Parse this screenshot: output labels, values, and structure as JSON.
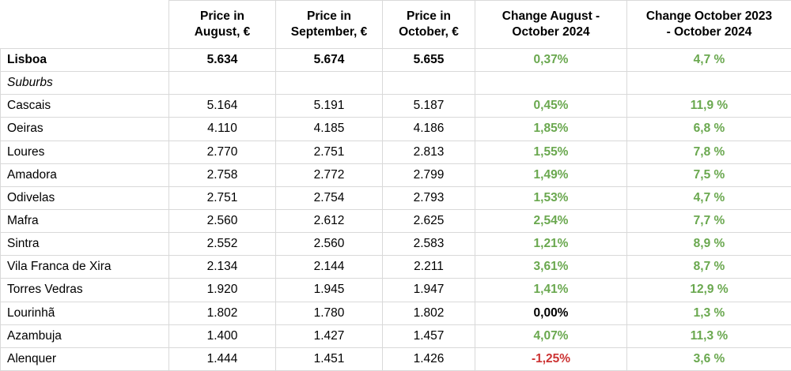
{
  "colors": {
    "positive": "#6aa84f",
    "negative": "#cc3333",
    "neutral": "#000000",
    "gridline": "#d9d9d9"
  },
  "chart_data": {
    "type": "table",
    "columns": [
      {
        "label": ""
      },
      {
        "label": "Price in\nAugust, €"
      },
      {
        "label": "Price in\nSeptember, €"
      },
      {
        "label": "Price in\nOctober, €"
      },
      {
        "label": "Change August -\nOctober 2024"
      },
      {
        "label": "Change October 2023\n- October 2024"
      }
    ],
    "rows": [
      {
        "name": "Lisboa",
        "name_style": "bold",
        "values_bold": true,
        "aug": "5.634",
        "sep": "5.674",
        "oct": "5.655",
        "chg_aug_oct": "0,37%",
        "chg_aug_oct_color": "positive",
        "chg_yoy": "4,7 %",
        "chg_yoy_color": "positive"
      },
      {
        "name": "Suburbs",
        "name_style": "italic",
        "values_bold": false,
        "aug": "",
        "sep": "",
        "oct": "",
        "chg_aug_oct": "",
        "chg_aug_oct_color": "",
        "chg_yoy": "",
        "chg_yoy_color": ""
      },
      {
        "name": "Cascais",
        "name_style": "normal",
        "values_bold": false,
        "aug": "5.164",
        "sep": "5.191",
        "oct": "5.187",
        "chg_aug_oct": "0,45%",
        "chg_aug_oct_color": "positive",
        "chg_yoy": "11,9 %",
        "chg_yoy_color": "positive"
      },
      {
        "name": "Oeiras",
        "name_style": "normal",
        "values_bold": false,
        "aug": "4.110",
        "sep": "4.185",
        "oct": "4.186",
        "chg_aug_oct": "1,85%",
        "chg_aug_oct_color": "positive",
        "chg_yoy": "6,8 %",
        "chg_yoy_color": "positive"
      },
      {
        "name": "Loures",
        "name_style": "normal",
        "values_bold": false,
        "aug": "2.770",
        "sep": "2.751",
        "oct": "2.813",
        "chg_aug_oct": "1,55%",
        "chg_aug_oct_color": "positive",
        "chg_yoy": "7,8 %",
        "chg_yoy_color": "positive"
      },
      {
        "name": "Amadora",
        "name_style": "normal",
        "values_bold": false,
        "aug": "2.758",
        "sep": "2.772",
        "oct": "2.799",
        "chg_aug_oct": "1,49%",
        "chg_aug_oct_color": "positive",
        "chg_yoy": "7,5 %",
        "chg_yoy_color": "positive"
      },
      {
        "name": "Odivelas",
        "name_style": "normal",
        "values_bold": false,
        "aug": "2.751",
        "sep": "2.754",
        "oct": "2.793",
        "chg_aug_oct": "1,53%",
        "chg_aug_oct_color": "positive",
        "chg_yoy": "4,7 %",
        "chg_yoy_color": "positive"
      },
      {
        "name": "Mafra",
        "name_style": "normal",
        "values_bold": false,
        "aug": "2.560",
        "sep": "2.612",
        "oct": "2.625",
        "chg_aug_oct": "2,54%",
        "chg_aug_oct_color": "positive",
        "chg_yoy": "7,7 %",
        "chg_yoy_color": "positive"
      },
      {
        "name": "Sintra",
        "name_style": "normal",
        "values_bold": false,
        "aug": "2.552",
        "sep": "2.560",
        "oct": "2.583",
        "chg_aug_oct": "1,21%",
        "chg_aug_oct_color": "positive",
        "chg_yoy": "8,9 %",
        "chg_yoy_color": "positive"
      },
      {
        "name": "Vila Franca de Xira",
        "name_style": "normal",
        "values_bold": false,
        "aug": "2.134",
        "sep": "2.144",
        "oct": "2.211",
        "chg_aug_oct": "3,61%",
        "chg_aug_oct_color": "positive",
        "chg_yoy": "8,7 %",
        "chg_yoy_color": "positive"
      },
      {
        "name": "Torres Vedras",
        "name_style": "normal",
        "values_bold": false,
        "aug": "1.920",
        "sep": "1.945",
        "oct": "1.947",
        "chg_aug_oct": "1,41%",
        "chg_aug_oct_color": "positive",
        "chg_yoy": "12,9 %",
        "chg_yoy_color": "positive"
      },
      {
        "name": "Lourinhã",
        "name_style": "normal",
        "values_bold": false,
        "aug": "1.802",
        "sep": "1.780",
        "oct": "1.802",
        "chg_aug_oct": "0,00%",
        "chg_aug_oct_color": "neutral",
        "chg_yoy": "1,3 %",
        "chg_yoy_color": "positive"
      },
      {
        "name": "Azambuja",
        "name_style": "normal",
        "values_bold": false,
        "aug": "1.400",
        "sep": "1.427",
        "oct": "1.457",
        "chg_aug_oct": "4,07%",
        "chg_aug_oct_color": "positive",
        "chg_yoy": "11,3 %",
        "chg_yoy_color": "positive"
      },
      {
        "name": "Alenquer",
        "name_style": "normal",
        "values_bold": false,
        "aug": "1.444",
        "sep": "1.451",
        "oct": "1.426",
        "chg_aug_oct": "-1,25%",
        "chg_aug_oct_color": "negative",
        "chg_yoy": "3,6 %",
        "chg_yoy_color": "positive"
      }
    ]
  }
}
